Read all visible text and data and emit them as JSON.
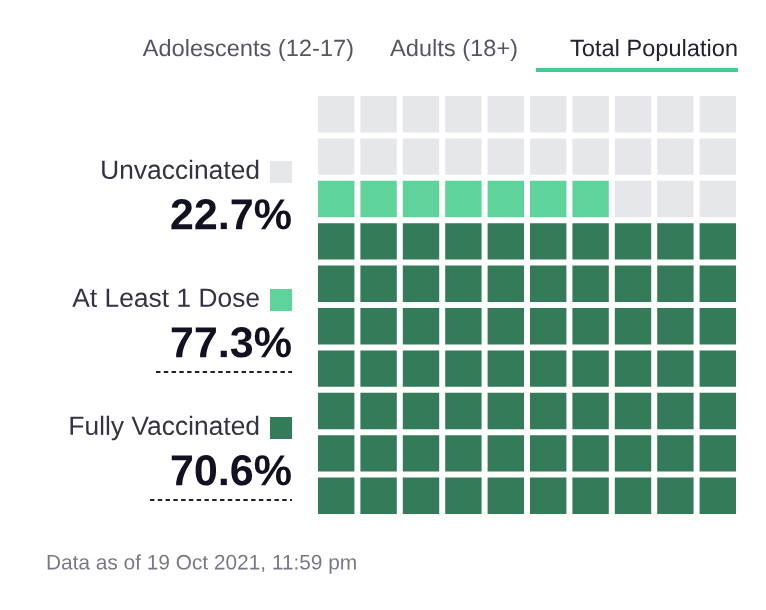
{
  "chart_data": {
    "type": "other",
    "annotations": [
      "Adolescents (12-17)",
      "Adults (18+)",
      "Total Population",
      "Data as of 19 Oct 2021, 11:59 pm"
    ],
    "series": [
      {
        "name": "Unvaccinated",
        "color": "#e6e7eb",
        "values": [
          22.7
        ],
        "value_labels": [
          "22.7%"
        ]
      },
      {
        "name": "At Least 1 Dose",
        "color": "#5fd39c",
        "values": [
          77.3
        ],
        "value_labels": [
          "77.3%"
        ]
      },
      {
        "name": "Fully Vaccinated",
        "color": "#347b59",
        "values": [
          70.6
        ],
        "value_labels": [
          "70.6%"
        ]
      }
    ],
    "legend": "left"
  }
}
